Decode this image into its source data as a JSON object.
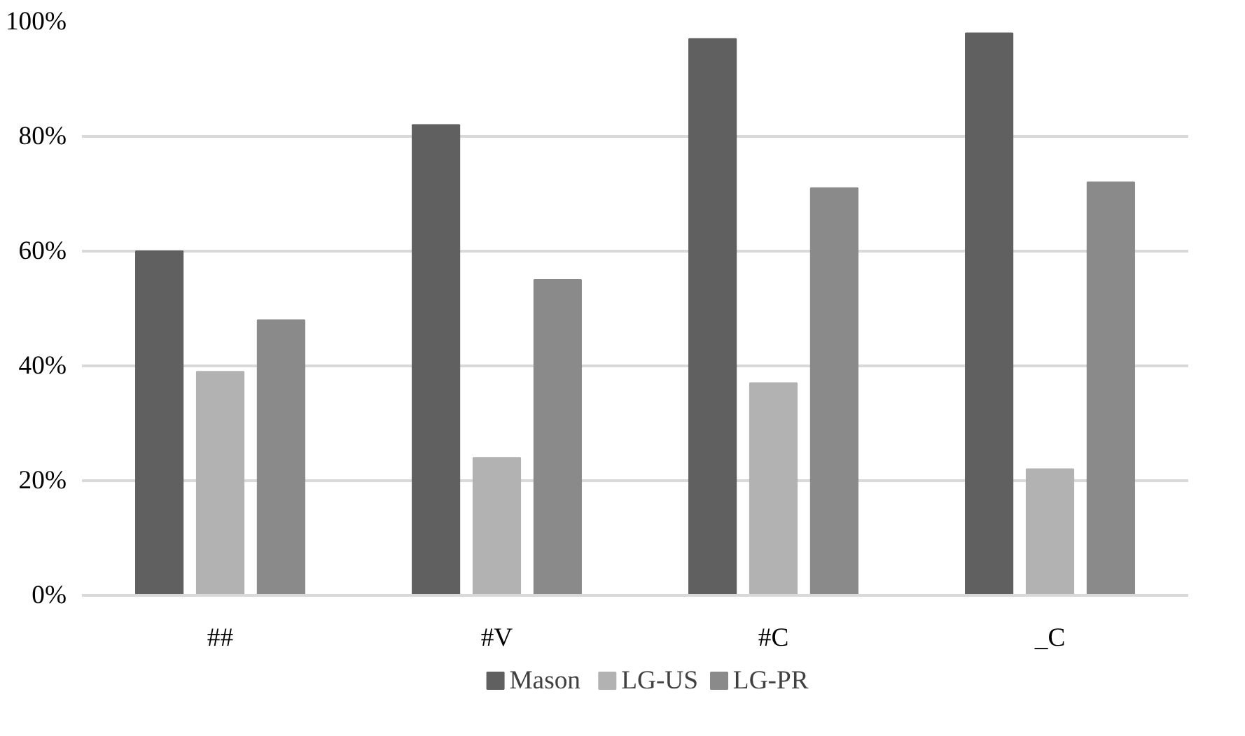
{
  "chart_data": {
    "type": "bar",
    "categories": [
      "##",
      "#V",
      "#C",
      "_C"
    ],
    "series": [
      {
        "name": "Mason",
        "color": "#606060",
        "values": [
          60,
          82,
          97,
          98
        ]
      },
      {
        "name": "LG-US",
        "color": "#b2b2b2",
        "values": [
          39,
          24,
          37,
          22
        ]
      },
      {
        "name": "LG-PR",
        "color": "#8a8a8a",
        "values": [
          48,
          55,
          71,
          72
        ]
      }
    ],
    "ylim": [
      0,
      100
    ],
    "yticks": [
      {
        "value": 0,
        "label": "0%"
      },
      {
        "value": 20,
        "label": "20%"
      },
      {
        "value": 40,
        "label": "40%"
      },
      {
        "value": 60,
        "label": "60%"
      },
      {
        "value": 80,
        "label": "80%"
      },
      {
        "value": 100,
        "label": "100%"
      }
    ],
    "grid": "y",
    "legend": "bottom"
  }
}
